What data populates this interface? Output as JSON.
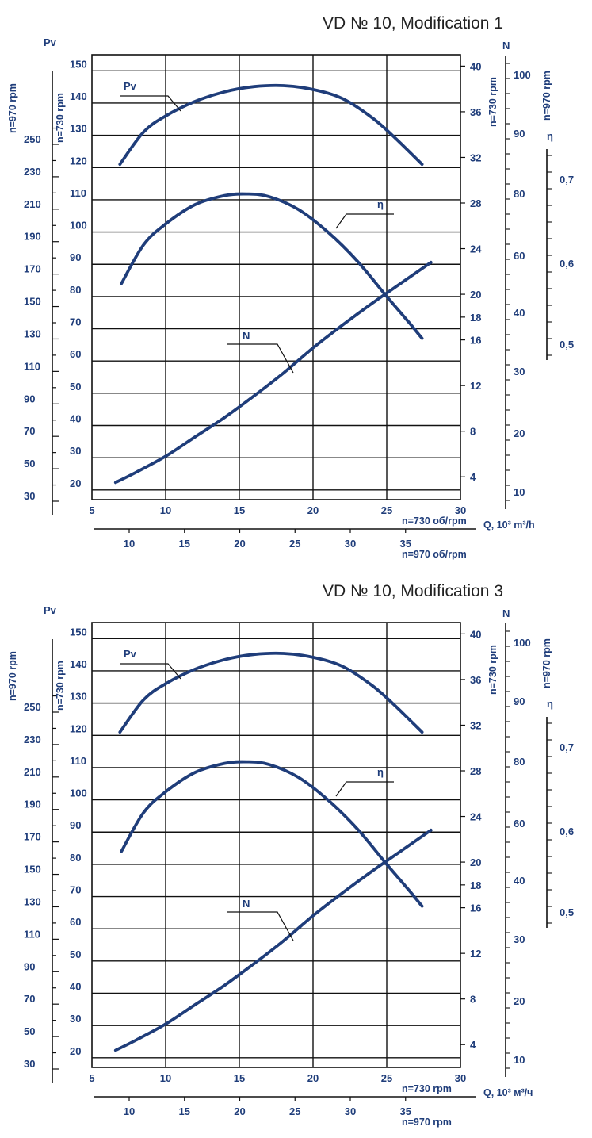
{
  "colors": {
    "ink": "#1f3d7a",
    "grid": "#111111",
    "title": "#222222"
  },
  "chart_data": [
    {
      "type": "line",
      "title": "VD  № 10, Modification 1",
      "x_primary": {
        "label": "n=730 об/rpm",
        "unit_label": "Q, 10³ m³/h",
        "ticks": [
          5,
          10,
          15,
          20,
          25,
          30
        ],
        "range": [
          5,
          30
        ]
      },
      "x_secondary": {
        "label": "n=970 об/rpm",
        "ticks": [
          10,
          15,
          20,
          25,
          30,
          35
        ]
      },
      "pv_970": {
        "title": "Pv",
        "label": "n=970 rpm",
        "ticks": [
          30,
          50,
          70,
          90,
          110,
          130,
          150,
          170,
          190,
          210,
          230,
          250
        ]
      },
      "pv_730": {
        "label": "n=730 rpm",
        "ticks": [
          20,
          30,
          40,
          50,
          60,
          70,
          80,
          90,
          100,
          110,
          120,
          130,
          140,
          150
        ],
        "range": [
          17,
          155
        ]
      },
      "n_730": {
        "label": "n=730 rpm",
        "ticks": [
          4,
          8,
          12,
          16,
          18,
          20,
          24,
          28,
          32,
          36,
          40
        ],
        "range": [
          2,
          41
        ]
      },
      "n_970": {
        "title": "N",
        "label": "n=970 rpm",
        "ticks": [
          10,
          20,
          30,
          40,
          60,
          80,
          90,
          100
        ]
      },
      "eta": {
        "title": "η",
        "ticks": [
          "0,7",
          "0,6",
          "0,5"
        ]
      },
      "series": [
        {
          "name": "Pv",
          "axis": "pv_730",
          "x": [
            6.9,
            8.5,
            10,
            12,
            14,
            16,
            18,
            20,
            22,
            24,
            25.5,
            27.4
          ],
          "y": [
            121,
            131,
            136,
            140.5,
            143.5,
            145.1,
            145.4,
            144.2,
            141.4,
            135.5,
            129.5,
            121
          ]
        },
        {
          "name": "η",
          "axis": "pv_730",
          "x": [
            7,
            8.5,
            10,
            12,
            14,
            15.5,
            17,
            19,
            21,
            23,
            25,
            26.5,
            27.4
          ],
          "y": [
            84,
            96,
            102.5,
            108.5,
            111.3,
            111.8,
            111,
            107,
            100,
            91,
            80,
            72,
            67
          ]
        },
        {
          "name": "N",
          "axis": "n_730",
          "x": [
            6.6,
            8,
            10,
            12,
            14,
            16,
            18,
            20,
            22,
            24,
            26,
            28
          ],
          "y": [
            3.5,
            4.4,
            5.8,
            7.5,
            9.2,
            11.1,
            13.1,
            15.3,
            17.3,
            19.2,
            21,
            22.8
          ]
        }
      ]
    },
    {
      "type": "line",
      "title": "VD № 10, Modification 3",
      "x_primary": {
        "label": "n=730 rpm",
        "unit_label": "Q, 10³ м³/ч",
        "ticks": [
          5,
          10,
          15,
          20,
          25,
          30
        ],
        "range": [
          5,
          30
        ]
      },
      "x_secondary": {
        "label": "n=970 rpm",
        "ticks": [
          10,
          15,
          20,
          25,
          30,
          35
        ]
      },
      "pv_970": {
        "title": "Pv",
        "label": "n=970 rpm",
        "ticks": [
          30,
          50,
          70,
          90,
          110,
          130,
          150,
          170,
          190,
          210,
          230,
          250
        ]
      },
      "pv_730": {
        "label": "n=730 rpm",
        "ticks": [
          20,
          30,
          40,
          50,
          60,
          70,
          80,
          90,
          100,
          110,
          120,
          130,
          140,
          150
        ],
        "range": [
          17,
          155
        ]
      },
      "n_730": {
        "label": "n=730 rpm",
        "ticks": [
          4,
          8,
          12,
          16,
          18,
          20,
          24,
          28,
          32,
          36,
          40
        ],
        "range": [
          2,
          41
        ]
      },
      "n_970": {
        "title": "N",
        "label": "n=970 rpm",
        "ticks": [
          10,
          20,
          30,
          40,
          60,
          80,
          90,
          100
        ]
      },
      "eta": {
        "title": "η",
        "ticks": [
          "0,7",
          "0,6",
          "0,5"
        ]
      },
      "series": [
        {
          "name": "Pv",
          "axis": "pv_730",
          "x": [
            6.9,
            8.5,
            10,
            12,
            14,
            16,
            18,
            20,
            22,
            24,
            25.5,
            27.4
          ],
          "y": [
            121,
            131,
            136,
            140.5,
            143.5,
            145.1,
            145.4,
            144.2,
            141.4,
            135.5,
            129.5,
            121
          ]
        },
        {
          "name": "η",
          "axis": "pv_730",
          "x": [
            7,
            8.5,
            10,
            12,
            14,
            15.5,
            17,
            19,
            21,
            23,
            25,
            26.5,
            27.4
          ],
          "y": [
            84,
            96,
            102.5,
            108.5,
            111.3,
            111.8,
            111,
            107,
            100,
            91,
            80,
            72,
            67
          ]
        },
        {
          "name": "N",
          "axis": "n_730",
          "x": [
            6.6,
            8,
            10,
            12,
            14,
            16,
            18,
            20,
            22,
            24,
            26,
            28
          ],
          "y": [
            3.5,
            4.4,
            5.8,
            7.5,
            9.2,
            11.1,
            13.1,
            15.3,
            17.3,
            19.2,
            21,
            22.8
          ]
        }
      ]
    }
  ]
}
